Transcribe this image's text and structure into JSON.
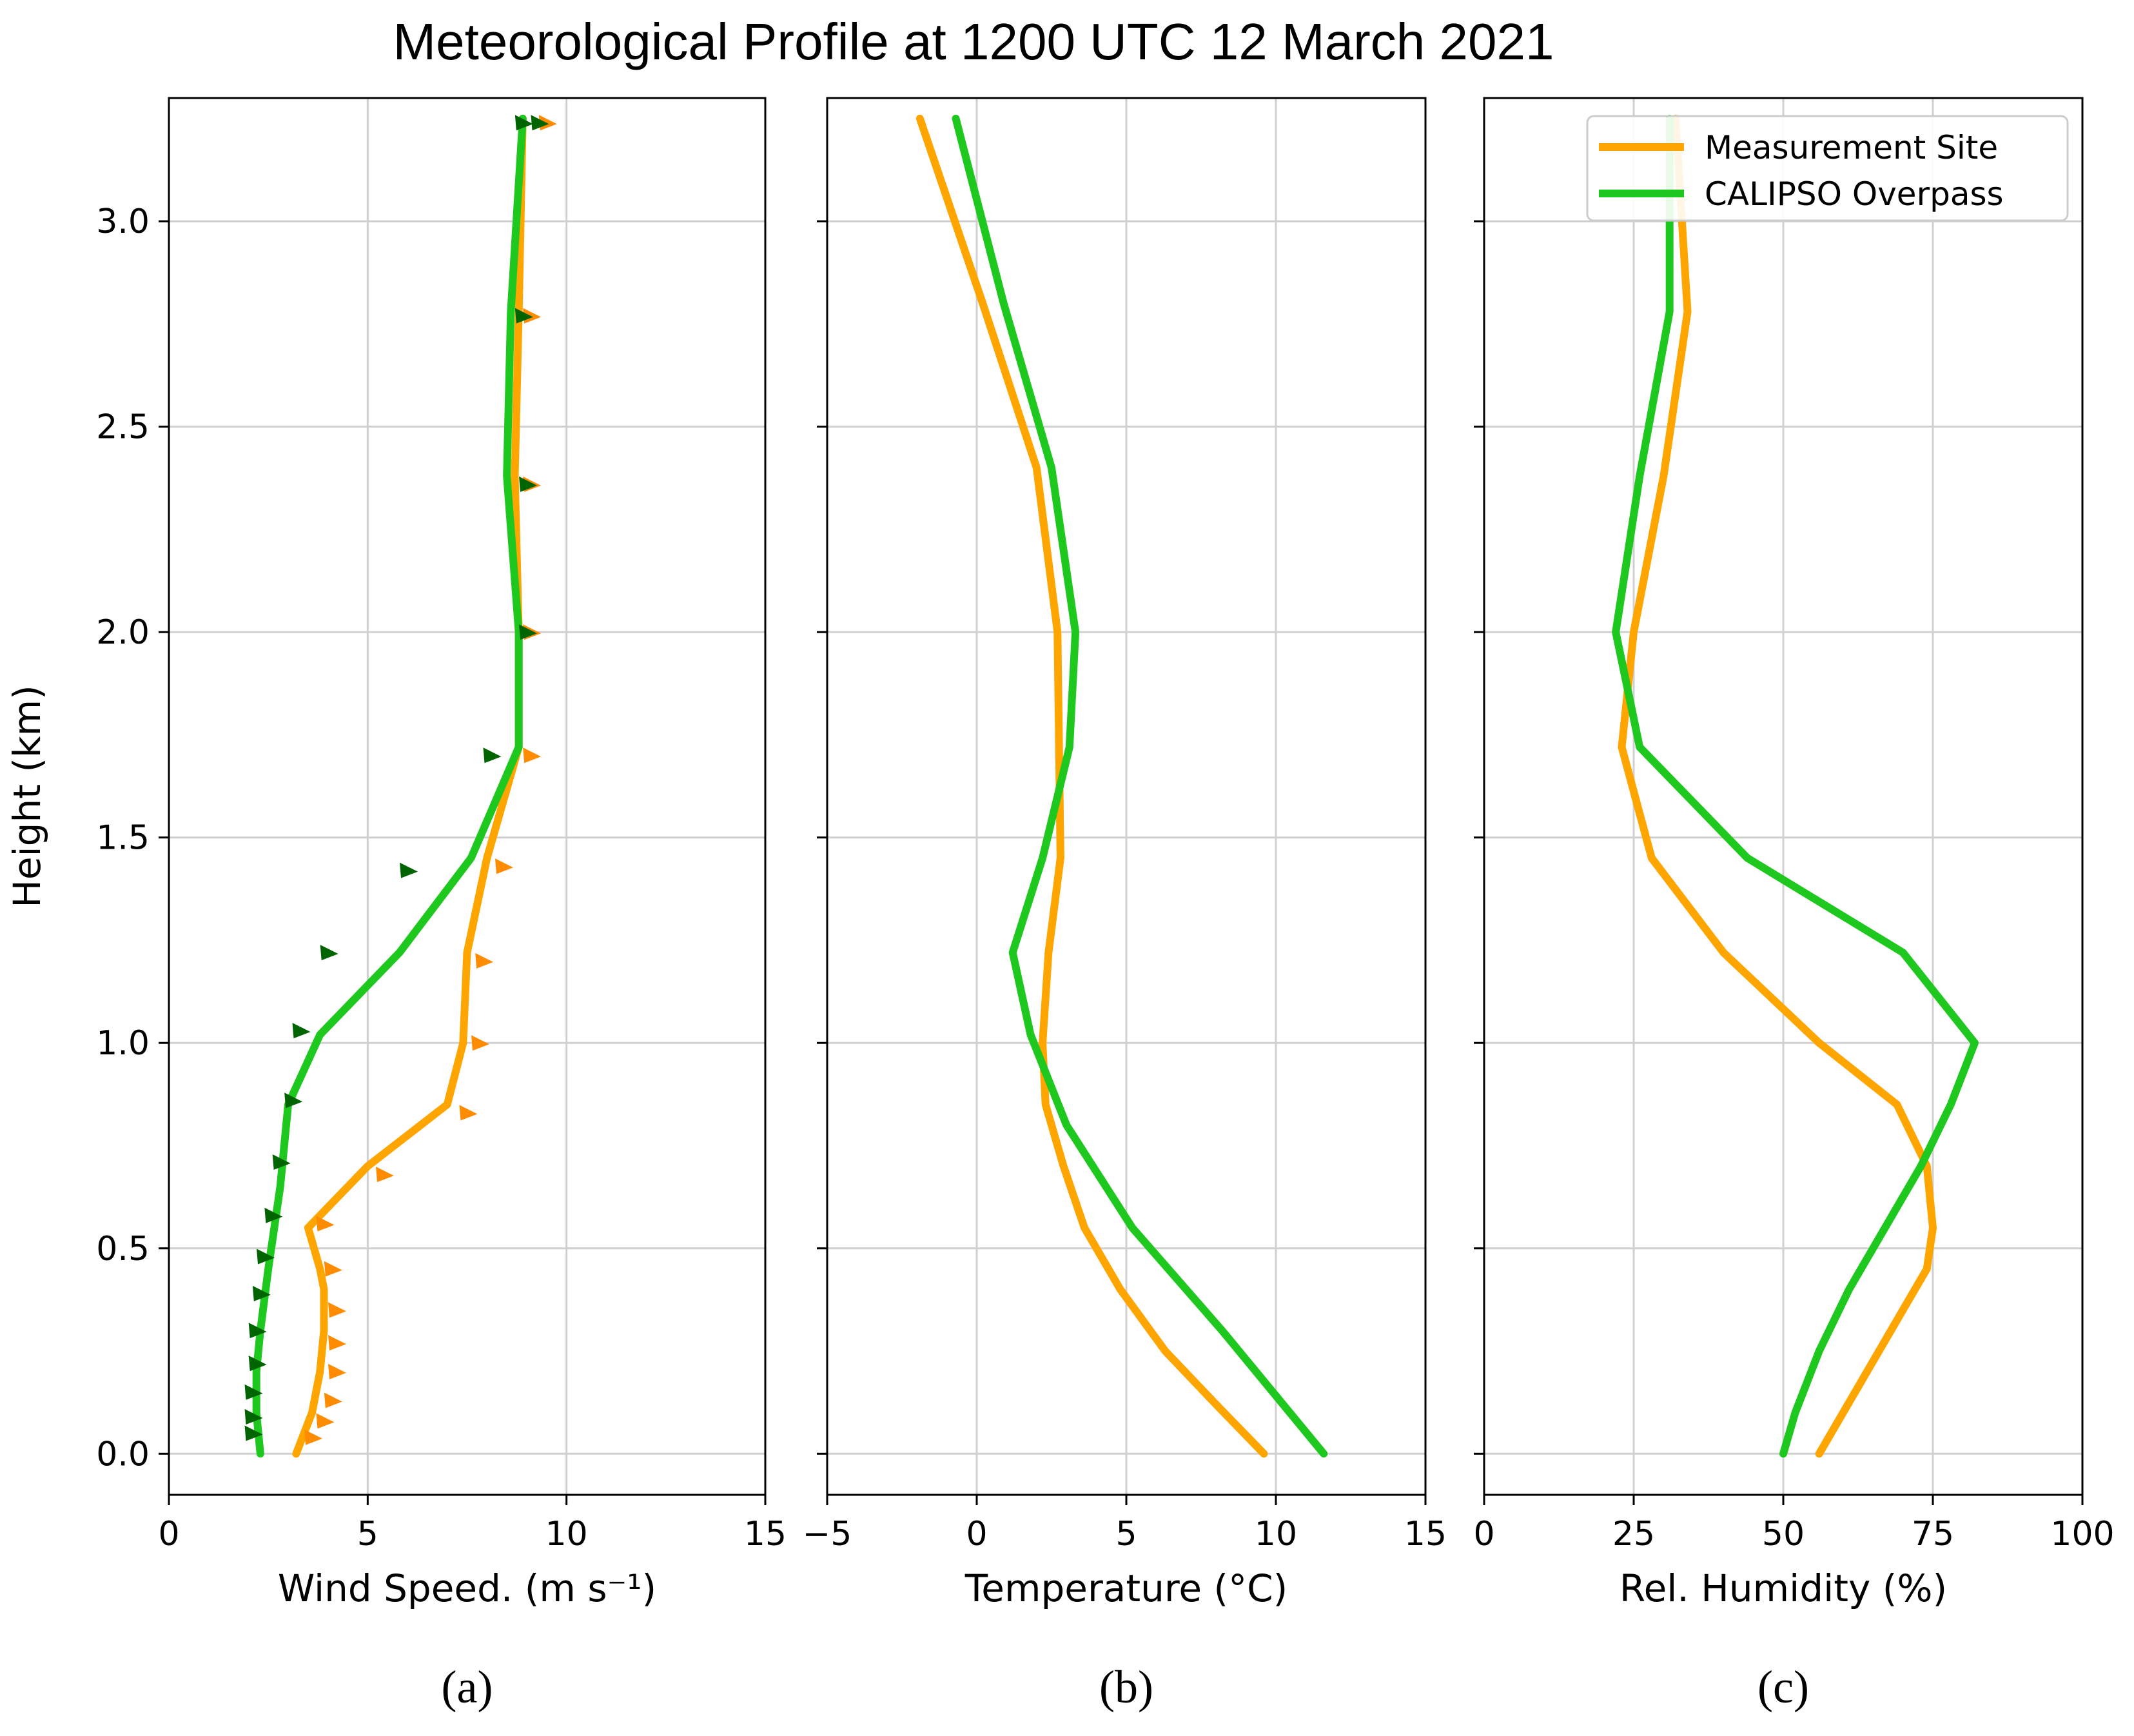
{
  "title": "Meteorological Profile at 1200 UTC 12 March 2021",
  "colors": {
    "measurement": "#ffa500",
    "calipso": "#1ec81e",
    "barb_measurement": "#ff8c00",
    "barb_calipso": "#006400",
    "grid": "#d0d0d0",
    "axis": "#000000"
  },
  "legend": {
    "position": "top-right",
    "entries": [
      "Measurement Site",
      "CALIPSO Overpass"
    ]
  },
  "chart_data": [
    {
      "type": "line",
      "panel": "a",
      "caption": "(a)",
      "xlabel": "Wind Speed. (m s⁻¹)",
      "ylabel": "Height (km)",
      "xlim": [
        0,
        15
      ],
      "ylim": [
        -0.1,
        3.3
      ],
      "xticks": [
        0,
        5,
        10,
        15
      ],
      "yticks": [
        0.0,
        0.5,
        1.0,
        1.5,
        2.0,
        2.5,
        3.0
      ],
      "xtick_labels": [
        "0",
        "5",
        "10",
        "15"
      ],
      "ytick_labels": [
        "0.0",
        "0.5",
        "1.0",
        "1.5",
        "2.0",
        "2.5",
        "3.0"
      ],
      "grid": true,
      "series": [
        {
          "name": "Measurement Site",
          "x": [
            3.2,
            3.6,
            3.8,
            3.9,
            3.9,
            3.8,
            3.5,
            5.0,
            7.0,
            7.4,
            7.5,
            8.0,
            8.8,
            8.8,
            8.7,
            8.8,
            8.9
          ],
          "y": [
            0.0,
            0.1,
            0.2,
            0.3,
            0.4,
            0.45,
            0.55,
            0.7,
            0.85,
            1.0,
            1.22,
            1.45,
            1.72,
            2.0,
            2.38,
            2.78,
            3.25
          ]
        },
        {
          "name": "CALIPSO Overpass",
          "x": [
            2.3,
            2.2,
            2.2,
            2.3,
            2.5,
            2.8,
            3.0,
            3.8,
            5.8,
            7.6,
            8.8,
            8.8,
            8.5,
            8.6,
            8.9
          ],
          "y": [
            0.0,
            0.1,
            0.2,
            0.3,
            0.45,
            0.65,
            0.85,
            1.02,
            1.22,
            1.45,
            1.72,
            2.0,
            2.38,
            2.78,
            3.25
          ]
        }
      ],
      "barbs": [
        {
          "name": "Measurement Site",
          "x": [
            3.6,
            3.9,
            4.1,
            4.2,
            4.2,
            4.2,
            4.1,
            3.9,
            5.4,
            7.5,
            7.8,
            7.9,
            8.4,
            9.1,
            9.1,
            9.1,
            9.1,
            9.5
          ],
          "y": [
            0.04,
            0.08,
            0.13,
            0.2,
            0.27,
            0.35,
            0.45,
            0.56,
            0.68,
            0.83,
            1.0,
            1.2,
            1.43,
            1.7,
            2.0,
            2.36,
            2.77,
            3.24
          ]
        },
        {
          "name": "CALIPSO Overpass",
          "x": [
            2.1,
            2.1,
            2.1,
            2.2,
            2.2,
            2.3,
            2.4,
            2.6,
            2.8,
            3.1,
            3.3,
            4.0,
            6.0,
            8.1,
            9.0,
            9.0,
            8.9,
            8.9,
            9.3
          ],
          "y": [
            0.05,
            0.09,
            0.15,
            0.22,
            0.3,
            0.39,
            0.48,
            0.58,
            0.71,
            0.86,
            1.03,
            1.22,
            1.42,
            1.7,
            2.0,
            2.36,
            2.77,
            3.24,
            3.24
          ]
        }
      ]
    },
    {
      "type": "line",
      "panel": "b",
      "caption": "(b)",
      "xlabel": "Temperature (°C)",
      "xlim": [
        -5,
        15
      ],
      "ylim": [
        -0.1,
        3.3
      ],
      "xticks": [
        -5,
        0,
        5,
        10,
        15
      ],
      "yticks": [
        0.0,
        0.5,
        1.0,
        1.5,
        2.0,
        2.5,
        3.0
      ],
      "xtick_labels": [
        "−5",
        "0",
        "5",
        "10",
        "15"
      ],
      "grid": true,
      "series": [
        {
          "name": "Measurement Site",
          "x": [
            9.6,
            8.0,
            6.3,
            4.8,
            3.6,
            2.9,
            2.3,
            2.2,
            2.4,
            2.8,
            2.7,
            2.0,
            0.2,
            -1.9
          ],
          "y": [
            0.0,
            0.12,
            0.25,
            0.4,
            0.55,
            0.7,
            0.85,
            1.0,
            1.22,
            1.45,
            2.0,
            2.4,
            2.8,
            3.25
          ]
        },
        {
          "name": "CALIPSO Overpass",
          "x": [
            11.6,
            8.2,
            5.2,
            3.0,
            1.8,
            1.2,
            2.2,
            3.1,
            3.3,
            2.5,
            0.9,
            -0.7
          ],
          "y": [
            0.0,
            0.3,
            0.55,
            0.8,
            1.02,
            1.22,
            1.45,
            1.72,
            2.0,
            2.4,
            2.8,
            3.25
          ]
        }
      ]
    },
    {
      "type": "line",
      "panel": "c",
      "caption": "(c)",
      "xlabel": "Rel. Humidity (%)",
      "xlim": [
        0,
        100
      ],
      "ylim": [
        -0.1,
        3.3
      ],
      "xticks": [
        0,
        25,
        50,
        75,
        100
      ],
      "yticks": [
        0.0,
        0.5,
        1.0,
        1.5,
        2.0,
        2.5,
        3.0
      ],
      "xtick_labels": [
        "0",
        "25",
        "50",
        "75",
        "100"
      ],
      "grid": true,
      "series": [
        {
          "name": "Measurement Site",
          "x": [
            56,
            62,
            68,
            74,
            75,
            74,
            69,
            56,
            40,
            28,
            23,
            25,
            30,
            34,
            32
          ],
          "y": [
            0.0,
            0.15,
            0.3,
            0.45,
            0.55,
            0.7,
            0.85,
            1.0,
            1.22,
            1.45,
            1.72,
            2.0,
            2.38,
            2.78,
            3.25
          ]
        },
        {
          "name": "CALIPSO Overpass",
          "x": [
            50,
            52,
            56,
            61,
            67,
            73,
            78,
            82,
            70,
            44,
            26,
            22,
            26,
            31,
            31
          ],
          "y": [
            0.0,
            0.1,
            0.25,
            0.4,
            0.55,
            0.7,
            0.85,
            1.0,
            1.22,
            1.45,
            1.72,
            2.0,
            2.38,
            2.78,
            3.25
          ]
        }
      ]
    }
  ]
}
